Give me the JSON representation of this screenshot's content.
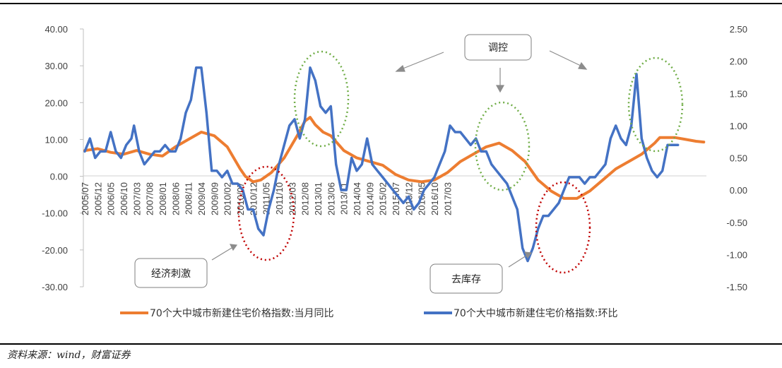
{
  "source": "资料来源：wind，财富证券",
  "chart_data": {
    "type": "line",
    "dual_axis": true,
    "y_left": {
      "range": [
        -30,
        40
      ],
      "ticks": [
        "40.00",
        "30.00",
        "20.00",
        "10.00",
        "0.00",
        "-10.00",
        "-20.00",
        "-30.00"
      ]
    },
    "y_right": {
      "range": [
        -1.5,
        2.5
      ],
      "ticks": [
        "2.50",
        "2.00",
        "1.50",
        "1.00",
        "0.50",
        "0.00",
        "-0.50",
        "-1.00",
        "-1.50"
      ]
    },
    "x_tick_labels": [
      "2005/07",
      "2005/12",
      "2006/05",
      "2006/10",
      "2007/03",
      "2007/08",
      "2008/01",
      "2008/06",
      "2008/11",
      "2009/04",
      "2009/09",
      "2010/02",
      "2010/07",
      "2010/12",
      "2011/05",
      "2011/10",
      "2012/03",
      "2012/08",
      "2013/01",
      "2013/06",
      "2013/11",
      "2014/04",
      "2014/09",
      "2015/02",
      "2015/07",
      "2015/12",
      "2016/05",
      "2016/10",
      "2017/03"
    ],
    "legend_position": "bottom",
    "series": [
      {
        "name": "70个大中城市新建住宅价格指数:当月同比",
        "axis": "left",
        "color": "#ED7D31",
        "points": [
          [
            0,
            7
          ],
          [
            5,
            7.5
          ],
          [
            10,
            6.5
          ],
          [
            15,
            6
          ],
          [
            20,
            7
          ],
          [
            25,
            6
          ],
          [
            30,
            5.5
          ],
          [
            35,
            8
          ],
          [
            40,
            10
          ],
          [
            45,
            12
          ],
          [
            50,
            11
          ],
          [
            55,
            8
          ],
          [
            60,
            2
          ],
          [
            62,
            0
          ],
          [
            65,
            -1.5
          ],
          [
            68,
            -1
          ],
          [
            72,
            1
          ],
          [
            77,
            5
          ],
          [
            82,
            11
          ],
          [
            85,
            15
          ],
          [
            87,
            16
          ],
          [
            89,
            14
          ],
          [
            92,
            12
          ],
          [
            95,
            11
          ],
          [
            100,
            7
          ],
          [
            105,
            5
          ],
          [
            110,
            4
          ],
          [
            115,
            3
          ],
          [
            120,
            0.5
          ],
          [
            125,
            -1
          ],
          [
            130,
            -1.5
          ],
          [
            135,
            -1
          ],
          [
            140,
            1
          ],
          [
            145,
            4
          ],
          [
            150,
            6
          ],
          [
            155,
            8
          ],
          [
            160,
            9
          ],
          [
            165,
            7
          ],
          [
            170,
            4
          ],
          [
            175,
            -1
          ],
          [
            180,
            -4
          ],
          [
            185,
            -6
          ],
          [
            190,
            -6
          ],
          [
            195,
            -4
          ],
          [
            200,
            -1
          ],
          [
            205,
            2
          ],
          [
            210,
            4
          ],
          [
            215,
            6
          ],
          [
            220,
            9
          ],
          [
            222,
            10.5
          ],
          [
            228,
            10.5
          ],
          [
            232,
            10
          ],
          [
            236,
            9.5
          ],
          [
            239,
            9.3
          ]
        ]
      },
      {
        "name": "70个大中城市新建住宅价格指数:环比",
        "axis": "right",
        "color": "#4472C4",
        "points": [
          [
            0,
            0.6
          ],
          [
            2,
            0.8
          ],
          [
            4,
            0.5
          ],
          [
            6,
            0.6
          ],
          [
            8,
            0.6
          ],
          [
            10,
            0.9
          ],
          [
            12,
            0.6
          ],
          [
            14,
            0.5
          ],
          [
            16,
            0.7
          ],
          [
            18,
            0.8
          ],
          [
            19,
            1.0
          ],
          [
            21,
            0.6
          ],
          [
            23,
            0.4
          ],
          [
            25,
            0.5
          ],
          [
            27,
            0.6
          ],
          [
            29,
            0.6
          ],
          [
            31,
            0.7
          ],
          [
            33,
            0.6
          ],
          [
            35,
            0.6
          ],
          [
            37,
            0.8
          ],
          [
            39,
            1.2
          ],
          [
            41,
            1.4
          ],
          [
            43,
            1.9
          ],
          [
            45,
            1.9
          ],
          [
            47,
            1.2
          ],
          [
            49,
            0.3
          ],
          [
            51,
            0.3
          ],
          [
            53,
            0.2
          ],
          [
            55,
            0.3
          ],
          [
            57,
            0.1
          ],
          [
            59,
            0.1
          ],
          [
            61,
            0.0
          ],
          [
            63,
            -0.3
          ],
          [
            65,
            -0.3
          ],
          [
            67,
            -0.6
          ],
          [
            69,
            -0.7
          ],
          [
            71,
            -0.3
          ],
          [
            73,
            0.0
          ],
          [
            75,
            0.4
          ],
          [
            77,
            0.7
          ],
          [
            79,
            1.0
          ],
          [
            81,
            1.1
          ],
          [
            83,
            0.8
          ],
          [
            85,
            1.1
          ],
          [
            87,
            1.9
          ],
          [
            89,
            1.7
          ],
          [
            91,
            1.3
          ],
          [
            93,
            1.2
          ],
          [
            95,
            1.3
          ],
          [
            97,
            0.4
          ],
          [
            99,
            0.0
          ],
          [
            101,
            0.0
          ],
          [
            103,
            0.5
          ],
          [
            105,
            0.3
          ],
          [
            107,
            0.4
          ],
          [
            109,
            0.8
          ],
          [
            111,
            0.4
          ],
          [
            113,
            0.3
          ],
          [
            115,
            0.2
          ],
          [
            117,
            0.1
          ],
          [
            119,
            0.0
          ],
          [
            121,
            -0.1
          ],
          [
            123,
            -0.2
          ],
          [
            125,
            -0.1
          ],
          [
            127,
            -0.3
          ],
          [
            129,
            -0.2
          ],
          [
            131,
            0.0
          ],
          [
            133,
            0.1
          ],
          [
            135,
            0.2
          ],
          [
            137,
            0.4
          ],
          [
            139,
            0.6
          ],
          [
            141,
            1.0
          ],
          [
            143,
            0.9
          ],
          [
            145,
            0.9
          ],
          [
            147,
            0.8
          ],
          [
            149,
            0.7
          ],
          [
            151,
            0.8
          ],
          [
            153,
            0.6
          ],
          [
            155,
            0.6
          ],
          [
            157,
            0.4
          ],
          [
            159,
            0.3
          ],
          [
            161,
            0.2
          ],
          [
            163,
            0.1
          ],
          [
            165,
            -0.1
          ],
          [
            167,
            -0.3
          ],
          [
            169,
            -0.9
          ],
          [
            171,
            -1.1
          ],
          [
            173,
            -0.9
          ],
          [
            175,
            -0.6
          ],
          [
            177,
            -0.4
          ],
          [
            179,
            -0.4
          ],
          [
            181,
            -0.3
          ],
          [
            183,
            -0.2
          ],
          [
            185,
            0.0
          ],
          [
            187,
            0.2
          ],
          [
            189,
            0.2
          ],
          [
            191,
            0.2
          ],
          [
            193,
            0.1
          ],
          [
            195,
            0.2
          ],
          [
            197,
            0.2
          ],
          [
            199,
            0.3
          ],
          [
            201,
            0.4
          ],
          [
            203,
            0.8
          ],
          [
            205,
            1.0
          ],
          [
            207,
            0.8
          ],
          [
            209,
            0.7
          ],
          [
            211,
            1.0
          ],
          [
            213,
            1.8
          ],
          [
            215,
            0.8
          ],
          [
            217,
            0.5
          ],
          [
            219,
            0.3
          ],
          [
            221,
            0.2
          ],
          [
            223,
            0.3
          ],
          [
            225,
            0.7
          ],
          [
            227,
            0.7
          ],
          [
            229,
            0.7
          ]
        ]
      }
    ],
    "annotations": {
      "control": "调控",
      "stimulus": "经济刺激",
      "destock": "去库存"
    }
  }
}
